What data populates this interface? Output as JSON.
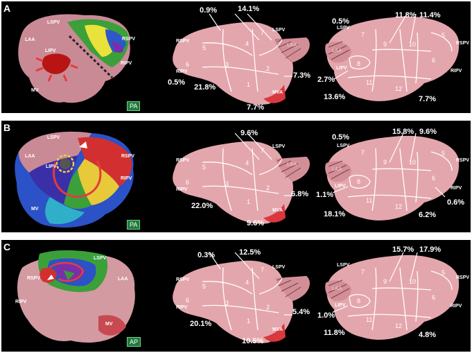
{
  "panels": [
    {
      "letter": "A",
      "badge": "PA",
      "left_labels": {
        "lspv": "LSPV",
        "laa": "LAA",
        "lipv": "LIPV",
        "rspv": "RSPV",
        "ripv": "RIPV",
        "mv": "MV"
      },
      "mid": {
        "rspv": "RSPV",
        "ripv": "RIPV",
        "lspv": "LSPV",
        "mva": "MVA",
        "laa": "LAA",
        "pct_top_left": "0.9%",
        "pct_top": "14.1%",
        "pct_left": "0.5%",
        "pct_bottom_left": "21.8%",
        "pct_bottom": "7.7%",
        "pct_right": "7.3%"
      },
      "right": {
        "lspv": "LSPV",
        "laa": "LAA",
        "lipv": "LIPV",
        "rspv": "RSPV",
        "ripv": "RIPV",
        "pct_top_left": "0.5%",
        "pct_top": "11.8%",
        "pct_top_right": "11.4%",
        "pct_left": "2.7%",
        "pct_bottom_left": "13.6%",
        "pct_bottom_right": "7.7%",
        "pct_right": ""
      }
    },
    {
      "letter": "B",
      "badge": "PA",
      "left_labels": {
        "lspv": "LSPV",
        "laa": "LAA",
        "lipv": "LIPV",
        "rspv": "RSPV",
        "ripv": "RIPV",
        "mv": "MV"
      },
      "mid": {
        "rspv": "RSPV",
        "ripv": "RIPV",
        "lspv": "LSPV",
        "mva": "MVA",
        "laa": "LAA",
        "pct_top_left": "",
        "pct_top": "9.6%",
        "pct_left": "",
        "pct_bottom_left": "22.0%",
        "pct_bottom": "9.6%",
        "pct_right": "6.8%"
      },
      "right": {
        "lspv": "LSPV",
        "laa": "LAA",
        "lipv": "LIPV",
        "rspv": "RSPV",
        "ripv": "RIPV",
        "pct_top_left": "0.5%",
        "pct_top": "15.8%",
        "pct_top_right": "9.6%",
        "pct_left": "1.1%",
        "pct_bottom_left": "18.1%",
        "pct_bottom_right": "6.2%",
        "pct_right": "0.6%"
      }
    },
    {
      "letter": "C",
      "badge": "AP",
      "left_labels": {
        "lspv": "LSPV",
        "laa": "LAA",
        "lipv": "",
        "rspv": "RSPV",
        "ripv": "RIPV",
        "mv": "MV"
      },
      "mid": {
        "rspv": "RSPV",
        "ripv": "RIPV",
        "lspv": "LSPV",
        "mva": "MVA",
        "laa": "",
        "pct_top_left": "0.3%",
        "pct_top": "12.5%",
        "pct_left": "",
        "pct_bottom_left": "20.1%",
        "pct_bottom": "10.5%",
        "pct_right": "5.4%"
      },
      "right": {
        "lspv": "LSPV",
        "laa": "LAA",
        "lipv": "LIPV",
        "rspv": "RSPV",
        "ripv": "RIPV",
        "pct_top_left": "",
        "pct_top": "15.7%",
        "pct_top_right": "17.9%",
        "pct_left": "1.0%",
        "pct_bottom_left": "11.8%",
        "pct_bottom_right": "4.8%",
        "pct_right": ""
      }
    }
  ],
  "segment_numbers": {
    "mid": [
      "1",
      "2",
      "3",
      "4",
      "5",
      "6",
      "7"
    ],
    "right": [
      "5",
      "6",
      "7",
      "8",
      "9",
      "10",
      "11",
      "12"
    ]
  }
}
